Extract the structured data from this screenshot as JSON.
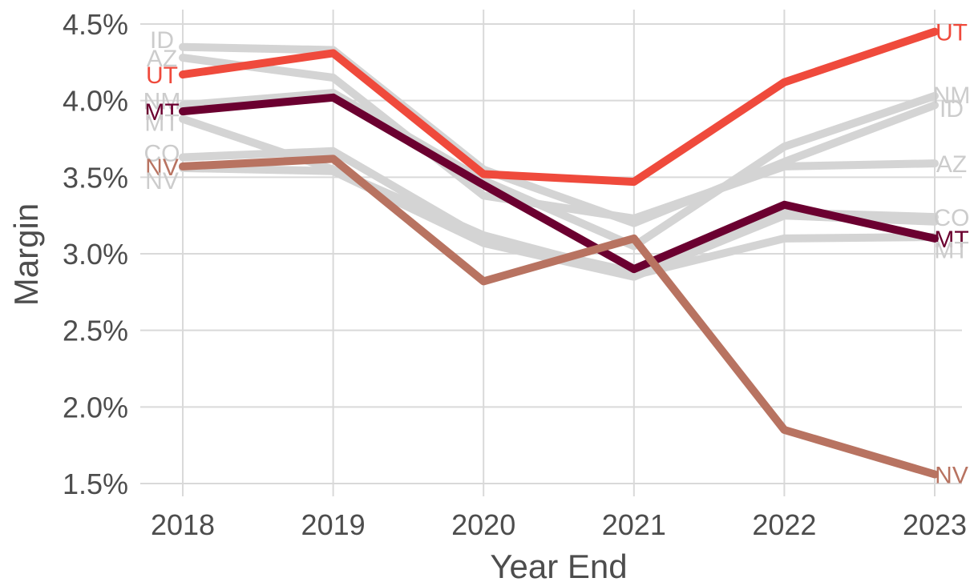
{
  "chart_data": {
    "type": "line",
    "xlabel": "Year End",
    "ylabel": "Margin",
    "x": [
      "2018",
      "2019",
      "2020",
      "2021",
      "2022",
      "2023"
    ],
    "y_ticks": [
      "1.5%",
      "2.0%",
      "2.5%",
      "3.0%",
      "3.5%",
      "4.0%",
      "4.5%"
    ],
    "ylim": [
      1.5,
      4.5
    ],
    "grid": true,
    "legend": "none (direct labels at line ends)",
    "series": [
      {
        "name": "ID",
        "values": [
          4.35,
          4.33,
          3.55,
          3.2,
          3.6,
          3.97
        ],
        "color": "#d4d4d4",
        "highlight": false
      },
      {
        "name": "AZ",
        "values": [
          4.28,
          4.15,
          3.38,
          3.23,
          3.57,
          3.59
        ],
        "color": "#d4d4d4",
        "highlight": false
      },
      {
        "name": "NM",
        "values": [
          3.97,
          4.05,
          3.48,
          3.05,
          3.7,
          4.03
        ],
        "color": "#d4d4d4",
        "highlight": false
      },
      {
        "name": "CO",
        "values": [
          3.63,
          3.67,
          3.1,
          2.88,
          3.27,
          3.24
        ],
        "color": "#d4d4d4",
        "highlight": false
      },
      {
        "name": "MT",
        "values": [
          3.93,
          4.02,
          3.45,
          2.9,
          3.32,
          3.1
        ],
        "color": "#6b0030",
        "highlight": true
      },
      {
        "name": "NV",
        "values": [
          3.57,
          3.62,
          2.82,
          3.1,
          1.85,
          1.56
        ],
        "color": "#b87361",
        "highlight": true
      },
      {
        "name": "UT",
        "values": [
          4.17,
          4.31,
          3.52,
          3.47,
          4.12,
          4.45
        ],
        "color": "#ef4a3c",
        "highlight": true
      }
    ],
    "grey_series_extra": [
      {
        "name": "MT",
        "values": [
          3.88,
          3.55,
          3.12,
          2.86,
          3.1,
          3.11
        ]
      },
      {
        "name": "NV",
        "values": [
          3.56,
          3.54,
          3.07,
          2.85,
          3.25,
          3.21
        ]
      }
    ],
    "left_labels": [
      {
        "text": "ID",
        "value": 4.4,
        "color": "#cccccc"
      },
      {
        "text": "AZ",
        "value": 4.28,
        "color": "#cccccc"
      },
      {
        "text": "UT",
        "value": 4.17,
        "color": "#ef4a3c"
      },
      {
        "text": "NM",
        "value": 4.0,
        "color": "#cccccc"
      },
      {
        "text": "MT",
        "value": 3.93,
        "color": "#6b0030"
      },
      {
        "text": "MT",
        "value": 3.86,
        "color": "#cccccc"
      },
      {
        "text": "CO",
        "value": 3.66,
        "color": "#cccccc"
      },
      {
        "text": "NV",
        "value": 3.57,
        "color": "#b87361"
      },
      {
        "text": "NV",
        "value": 3.48,
        "color": "#cccccc"
      }
    ],
    "right_labels": [
      {
        "text": "UT",
        "value": 4.45,
        "color": "#ef4a3c"
      },
      {
        "text": "NM",
        "value": 4.04,
        "color": "#cccccc"
      },
      {
        "text": "ID",
        "value": 3.95,
        "color": "#cccccc"
      },
      {
        "text": "AZ",
        "value": 3.59,
        "color": "#cccccc"
      },
      {
        "text": "CO",
        "value": 3.24,
        "color": "#cccccc"
      },
      {
        "text": "MT",
        "value": 3.1,
        "color": "#6b0030"
      },
      {
        "text": "MT",
        "value": 3.03,
        "color": "#cccccc"
      },
      {
        "text": "NV",
        "value": 1.56,
        "color": "#b87361"
      }
    ]
  }
}
